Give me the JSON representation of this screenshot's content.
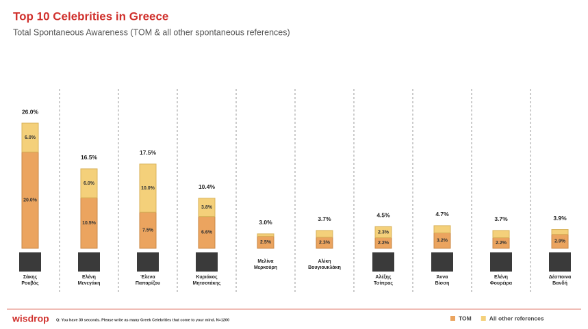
{
  "chart_data": {
    "type": "stacked_bar",
    "title": "Top 10 Celebrities in Greece",
    "subtitle": "Total Spontaneous Awareness (TOM & all other spontaneous references)",
    "categories": [
      "Σάκης\nΡουβάς",
      "Ελένη\nΜενεγάκη",
      "Έλενα\nΠαπαρίζου",
      "Κυριάκος\nΜητσοτάκης",
      "Μελίνα\nΜερκούρη",
      "Αλίκη\nΒουγιουκλάκη",
      "Αλέξης\nΤσίπρας",
      "Άννα\nΒίσση",
      "Ελένη\nΦουρέιρα",
      "Δέσποινα\nΒανδή"
    ],
    "series": [
      {
        "name": "TOM",
        "color": "#eba45f",
        "values": [
          20.0,
          10.5,
          7.5,
          6.6,
          2.5,
          2.3,
          2.2,
          3.2,
          2.2,
          2.9
        ],
        "value_labels": [
          "20.0%",
          "10.5%",
          "7.5%",
          "6.6%",
          "2.5%",
          "2.3%",
          "2.2%",
          "3.2%",
          "2.2%",
          "2.9%"
        ]
      },
      {
        "name": "All other references",
        "color": "#f4d07a",
        "values": [
          6.0,
          6.0,
          10.0,
          3.8,
          0.5,
          1.4,
          2.3,
          1.5,
          1.5,
          1.0
        ],
        "value_labels": [
          "6.0%",
          "6.0%",
          "10.0%",
          "3.8%",
          null,
          null,
          "2.3%",
          null,
          null,
          null
        ]
      }
    ],
    "total_labels": [
      "26.0%",
      "16.5%",
      "17.5%",
      "10.4%",
      "3.0%",
      "3.7%",
      "4.5%",
      "4.7%",
      "3.7%",
      "3.9%"
    ],
    "ylim": [
      0,
      26
    ],
    "footnote": "Q: You have 30 seconds. Please write as many Greek Celebrities that come to your mind. N=1200",
    "brand": "wisdrop"
  }
}
